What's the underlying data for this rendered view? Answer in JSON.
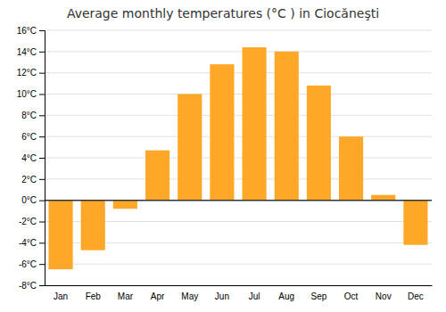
{
  "chart_data": {
    "type": "bar",
    "title": "Average monthly temperatures (°C ) in Ciocăneşti",
    "categories": [
      "Jan",
      "Feb",
      "Mar",
      "Apr",
      "May",
      "Jun",
      "Jul",
      "Aug",
      "Sep",
      "Oct",
      "Nov",
      "Dec"
    ],
    "values": [
      -6.5,
      -4.7,
      -0.8,
      4.7,
      10.0,
      12.8,
      14.4,
      14.0,
      10.8,
      6.0,
      0.5,
      -4.2
    ],
    "color": "#FFA726",
    "ylim": [
      -8,
      16
    ],
    "yticks": [
      {
        "value": -8,
        "label": "-8°C"
      },
      {
        "value": -6,
        "label": "-6°C"
      },
      {
        "value": -4,
        "label": "-4°C"
      },
      {
        "value": -2,
        "label": "-2°C"
      },
      {
        "value": 0,
        "label": "0°C"
      },
      {
        "value": 2,
        "label": "2°C"
      },
      {
        "value": 4,
        "label": "4°C"
      },
      {
        "value": 6,
        "label": "6°C"
      },
      {
        "value": 8,
        "label": "8°C"
      },
      {
        "value": 10,
        "label": "10°C"
      },
      {
        "value": 12,
        "label": "12°C"
      },
      {
        "value": 14,
        "label": "14°C"
      },
      {
        "value": 16,
        "label": "16°C"
      }
    ],
    "grid": true
  }
}
